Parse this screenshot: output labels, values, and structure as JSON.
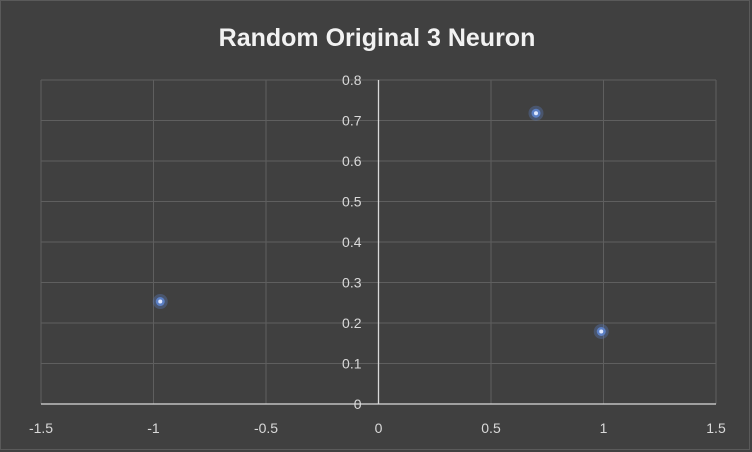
{
  "chart_data": {
    "type": "scatter",
    "title": "Random Original 3 Neuron",
    "xlabel": "",
    "ylabel": "",
    "xlim": [
      -1.5,
      1.5
    ],
    "ylim": [
      0,
      0.8
    ],
    "x_ticks": [
      -1.5,
      -1,
      -0.5,
      0,
      0.5,
      1,
      1.5
    ],
    "x_tick_labels": [
      "-1.5",
      "-1",
      "-0.5",
      "0",
      "0.5",
      "1",
      "1.5"
    ],
    "y_ticks": [
      0,
      0.1,
      0.2,
      0.3,
      0.4,
      0.5,
      0.6,
      0.7,
      0.8
    ],
    "y_tick_labels": [
      "0",
      "0.1",
      "0.2",
      "0.3",
      "0.4",
      "0.5",
      "0.6",
      "0.7",
      "0.8"
    ],
    "grid": true,
    "legend": "none",
    "series": [
      {
        "x": [
          -0.97,
          0.7,
          0.99
        ],
        "y": [
          0.253,
          0.718,
          0.179
        ]
      }
    ],
    "colors": {
      "background": "#404040",
      "grid": "#5f5f5f",
      "axis": "#d9d9d9",
      "text": "#d9d9d9",
      "title": "#f2f2f2",
      "marker_fill": "#5b7fc4",
      "marker_center": "#dfe8ff"
    }
  }
}
